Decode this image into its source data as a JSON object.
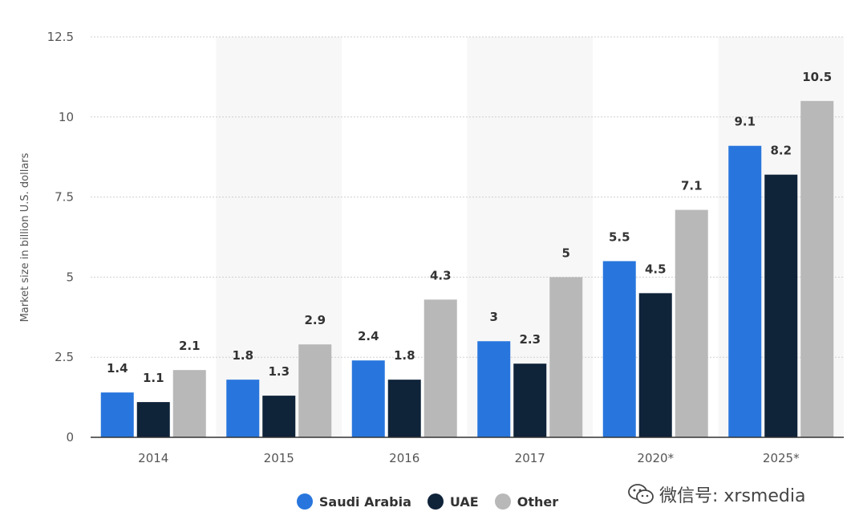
{
  "chart_data": {
    "type": "bar",
    "categories": [
      "2014",
      "2015",
      "2016",
      "2017",
      "2020*",
      "2025*"
    ],
    "series": [
      {
        "name": "Saudi Arabia",
        "color": "#2876dd",
        "values": [
          1.4,
          1.8,
          2.4,
          3,
          5.5,
          9.1
        ]
      },
      {
        "name": "UAE",
        "color": "#0f2339",
        "values": [
          1.1,
          1.3,
          1.8,
          2.3,
          4.5,
          8.2
        ]
      },
      {
        "name": "Other",
        "color": "#b8b8b8",
        "values": [
          2.1,
          2.9,
          4.3,
          5,
          7.1,
          10.5
        ]
      }
    ],
    "ylabel": "Market size in billion U.S. dollars",
    "xlabel": "",
    "ylim": [
      0,
      12.5
    ],
    "yticks": [
      "0",
      "2.5",
      "5",
      "7.5",
      "10",
      "12.5"
    ],
    "grid": true,
    "legend_position": "bottom-center"
  },
  "watermark": {
    "text": "微信号: xrsmedia",
    "icon": "wechat-icon"
  }
}
